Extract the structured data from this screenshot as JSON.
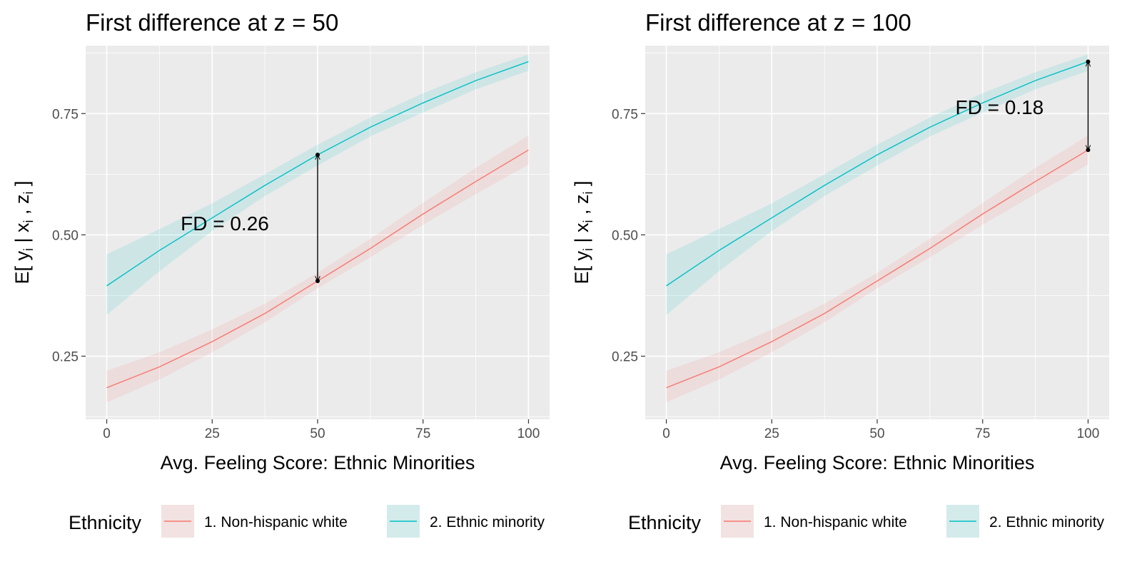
{
  "chart_data": [
    {
      "type": "line",
      "title": "First difference at z = 50",
      "xlabel": "Avg. Feeling Score: Ethnic Minorities",
      "ylabel": "E[ y_i | x_i , z_i ]",
      "ylabel_parts": [
        "E[ y",
        "i",
        " | x",
        "i",
        " , z",
        "i",
        " ]"
      ],
      "xlim": [
        -5,
        105
      ],
      "ylim": [
        0.12,
        0.89
      ],
      "xticks": [
        0,
        25,
        50,
        75,
        100
      ],
      "xtick_labels": [
        "0",
        "25",
        "50",
        "75",
        "100"
      ],
      "yticks": [
        0.25,
        0.5,
        0.75
      ],
      "ytick_labels": [
        "0.25",
        "0.50",
        "0.75"
      ],
      "grid": true,
      "legend_title": "Ethnicity",
      "legend_position": "bottom",
      "x": [
        0,
        12.5,
        25,
        37.5,
        50,
        62.5,
        75,
        87.5,
        100
      ],
      "series": [
        {
          "name": "1. Non-hispanic white",
          "color": "#F8766D",
          "values": [
            0.185,
            0.228,
            0.28,
            0.338,
            0.405,
            0.472,
            0.543,
            0.61,
            0.675
          ],
          "lower": [
            0.155,
            0.202,
            0.258,
            0.32,
            0.39,
            0.454,
            0.521,
            0.584,
            0.645
          ],
          "upper": [
            0.22,
            0.258,
            0.305,
            0.358,
            0.422,
            0.492,
            0.566,
            0.638,
            0.705
          ]
        },
        {
          "name": "2. Ethnic minority",
          "color": "#00BFC4",
          "values": [
            0.395,
            0.468,
            0.535,
            0.602,
            0.665,
            0.722,
            0.772,
            0.818,
            0.857
          ],
          "lower": [
            0.335,
            0.425,
            0.508,
            0.58,
            0.643,
            0.703,
            0.752,
            0.8,
            0.838
          ],
          "upper": [
            0.46,
            0.512,
            0.565,
            0.625,
            0.686,
            0.742,
            0.792,
            0.835,
            0.872
          ]
        }
      ],
      "annotation": {
        "label": "FD =  0.26",
        "x": 28,
        "y": 0.52,
        "arrow": {
          "x": 50,
          "y_from": 0.665,
          "y_to": 0.405
        }
      }
    },
    {
      "type": "line",
      "title": "First difference at z = 100",
      "xlabel": "Avg. Feeling Score: Ethnic Minorities",
      "ylabel": "E[ y_i | x_i , z_i ]",
      "ylabel_parts": [
        "E[ y",
        "i",
        " | x",
        "i",
        " , z",
        "i",
        " ]"
      ],
      "xlim": [
        -5,
        105
      ],
      "ylim": [
        0.12,
        0.89
      ],
      "xticks": [
        0,
        25,
        50,
        75,
        100
      ],
      "xtick_labels": [
        "0",
        "25",
        "50",
        "75",
        "100"
      ],
      "yticks": [
        0.25,
        0.5,
        0.75
      ],
      "ytick_labels": [
        "0.25",
        "0.50",
        "0.75"
      ],
      "grid": true,
      "legend_title": "Ethnicity",
      "legend_position": "bottom",
      "x": [
        0,
        12.5,
        25,
        37.5,
        50,
        62.5,
        75,
        87.5,
        100
      ],
      "series": [
        {
          "name": "1. Non-hispanic white",
          "color": "#F8766D",
          "values": [
            0.185,
            0.228,
            0.28,
            0.338,
            0.405,
            0.472,
            0.543,
            0.61,
            0.675
          ],
          "lower": [
            0.155,
            0.202,
            0.258,
            0.32,
            0.39,
            0.454,
            0.521,
            0.584,
            0.645
          ],
          "upper": [
            0.22,
            0.258,
            0.305,
            0.358,
            0.422,
            0.492,
            0.566,
            0.638,
            0.705
          ]
        },
        {
          "name": "2. Ethnic minority",
          "color": "#00BFC4",
          "values": [
            0.395,
            0.468,
            0.535,
            0.602,
            0.665,
            0.722,
            0.772,
            0.818,
            0.857
          ],
          "lower": [
            0.335,
            0.425,
            0.508,
            0.58,
            0.643,
            0.703,
            0.752,
            0.8,
            0.838
          ],
          "upper": [
            0.46,
            0.512,
            0.565,
            0.625,
            0.686,
            0.742,
            0.792,
            0.835,
            0.872
          ]
        }
      ],
      "annotation": {
        "label": "FD =  0.18",
        "x": 79,
        "y": 0.76,
        "arrow": {
          "x": 100,
          "y_from": 0.857,
          "y_to": 0.675
        }
      }
    }
  ]
}
